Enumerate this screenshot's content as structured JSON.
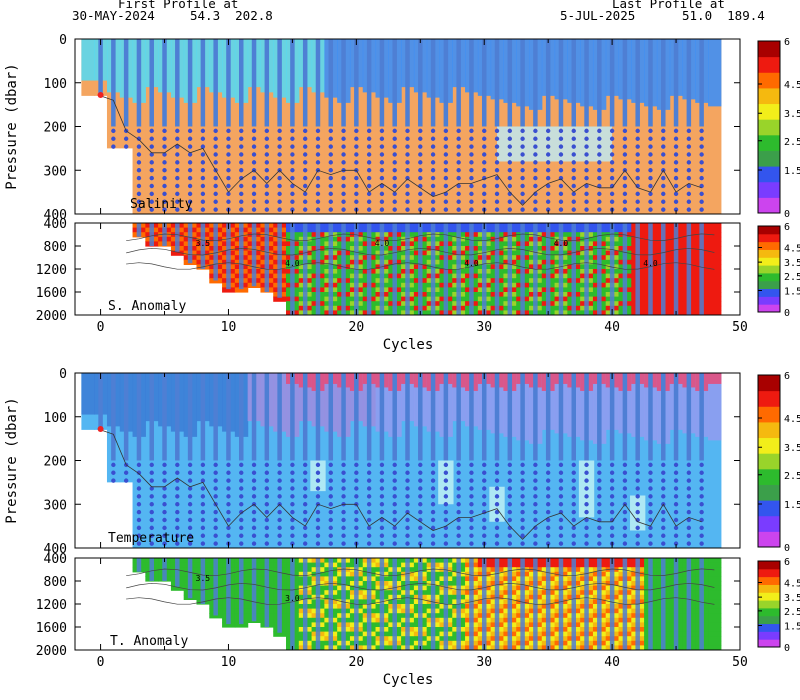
{
  "header": {
    "first_label": "First Profile at",
    "first_date": "30-MAY-2024",
    "first_pos": "54.3  202.8",
    "last_label": "Last Profile at",
    "last_date": "5-JUL-2025",
    "last_pos": "51.0  189.4"
  },
  "colors": {
    "scale": [
      "#cc44ee",
      "#7a3cff",
      "#3355ee",
      "#3b9f4a",
      "#2dbb2d",
      "#99d42a",
      "#f2ee1a",
      "#f5b90f",
      "#ff6a00",
      "#ee1a10",
      "#a80000"
    ],
    "salinity_fresh": "#5ad8f0",
    "salinity_mid": "#3f8ff5",
    "salinity_deep": "#f4a560",
    "temp_deep": "#54b6f2",
    "temp_surface": "#e84a78",
    "temp_cold": "#3c7ed6",
    "profile_line": "#4e7fd4",
    "dot": "#3a4fd0"
  },
  "chart_data": [
    {
      "type": "heatmap",
      "title": "Salinity",
      "xlim": [
        -2,
        50
      ],
      "ylim": [
        400,
        0
      ],
      "ylabel": "Pressure (dbar)",
      "yticks": [
        0,
        100,
        200,
        300,
        400
      ],
      "xticks": [
        0,
        10,
        20,
        30,
        40,
        50
      ],
      "colorbar_ticks": [
        "6",
        "4.5",
        "3.5",
        "2.5",
        "1.5",
        "0"
      ],
      "profile_cycles": [
        0,
        1,
        2,
        3,
        4,
        5,
        6,
        7,
        8,
        9,
        10,
        11,
        12,
        13,
        14,
        15,
        16,
        17,
        18,
        19,
        20,
        21,
        22,
        23,
        24,
        25,
        26,
        27,
        28,
        29,
        30,
        31,
        32,
        33,
        34,
        35,
        36,
        37,
        38,
        39,
        40,
        41,
        42,
        43,
        44,
        45,
        46,
        47
      ],
      "mixed_layer_depth_dbar": [
        130,
        140,
        210,
        230,
        260,
        260,
        240,
        260,
        250,
        300,
        350,
        320,
        300,
        330,
        300,
        330,
        350,
        300,
        310,
        300,
        300,
        350,
        330,
        350,
        320,
        340,
        360,
        350,
        330,
        330,
        320,
        310,
        350,
        380,
        350,
        330,
        320,
        350,
        330,
        340,
        340,
        300,
        340,
        350,
        300,
        350,
        330,
        340
      ]
    },
    {
      "type": "heatmap",
      "title": "S. Anomaly",
      "xlim": [
        -2,
        50
      ],
      "ylim": [
        2000,
        400
      ],
      "yticks": [
        400,
        800,
        1200,
        1600,
        2000
      ],
      "colorbar_ticks": [
        "6",
        "4.5",
        "3.5",
        "2.5",
        "1.5",
        "0"
      ],
      "contour_labels": [
        "3.5",
        "4.0",
        "4.0",
        "4.0",
        "4.0",
        "4.0"
      ]
    },
    {
      "type": "heatmap",
      "title": "Temperature",
      "xlim": [
        -2,
        50
      ],
      "ylim": [
        400,
        0
      ],
      "ylabel": "Pressure (dbar)",
      "yticks": [
        0,
        100,
        200,
        300,
        400
      ],
      "xticks": [
        0,
        10,
        20,
        30,
        40,
        50
      ],
      "colorbar_ticks": [
        "6",
        "4.5",
        "3.5",
        "2.5",
        "1.5",
        "0"
      ]
    },
    {
      "type": "heatmap",
      "title": "T. Anomaly",
      "xlim": [
        -2,
        50
      ],
      "ylim": [
        2000,
        400
      ],
      "yticks": [
        400,
        800,
        1200,
        1600,
        2000
      ],
      "colorbar_ticks": [
        "6",
        "4.5",
        "3.5",
        "2.5",
        "1.5",
        "0"
      ],
      "contour_labels": [
        "3.5",
        "3.0"
      ]
    }
  ],
  "axes": {
    "xlabel": "Cycles"
  }
}
